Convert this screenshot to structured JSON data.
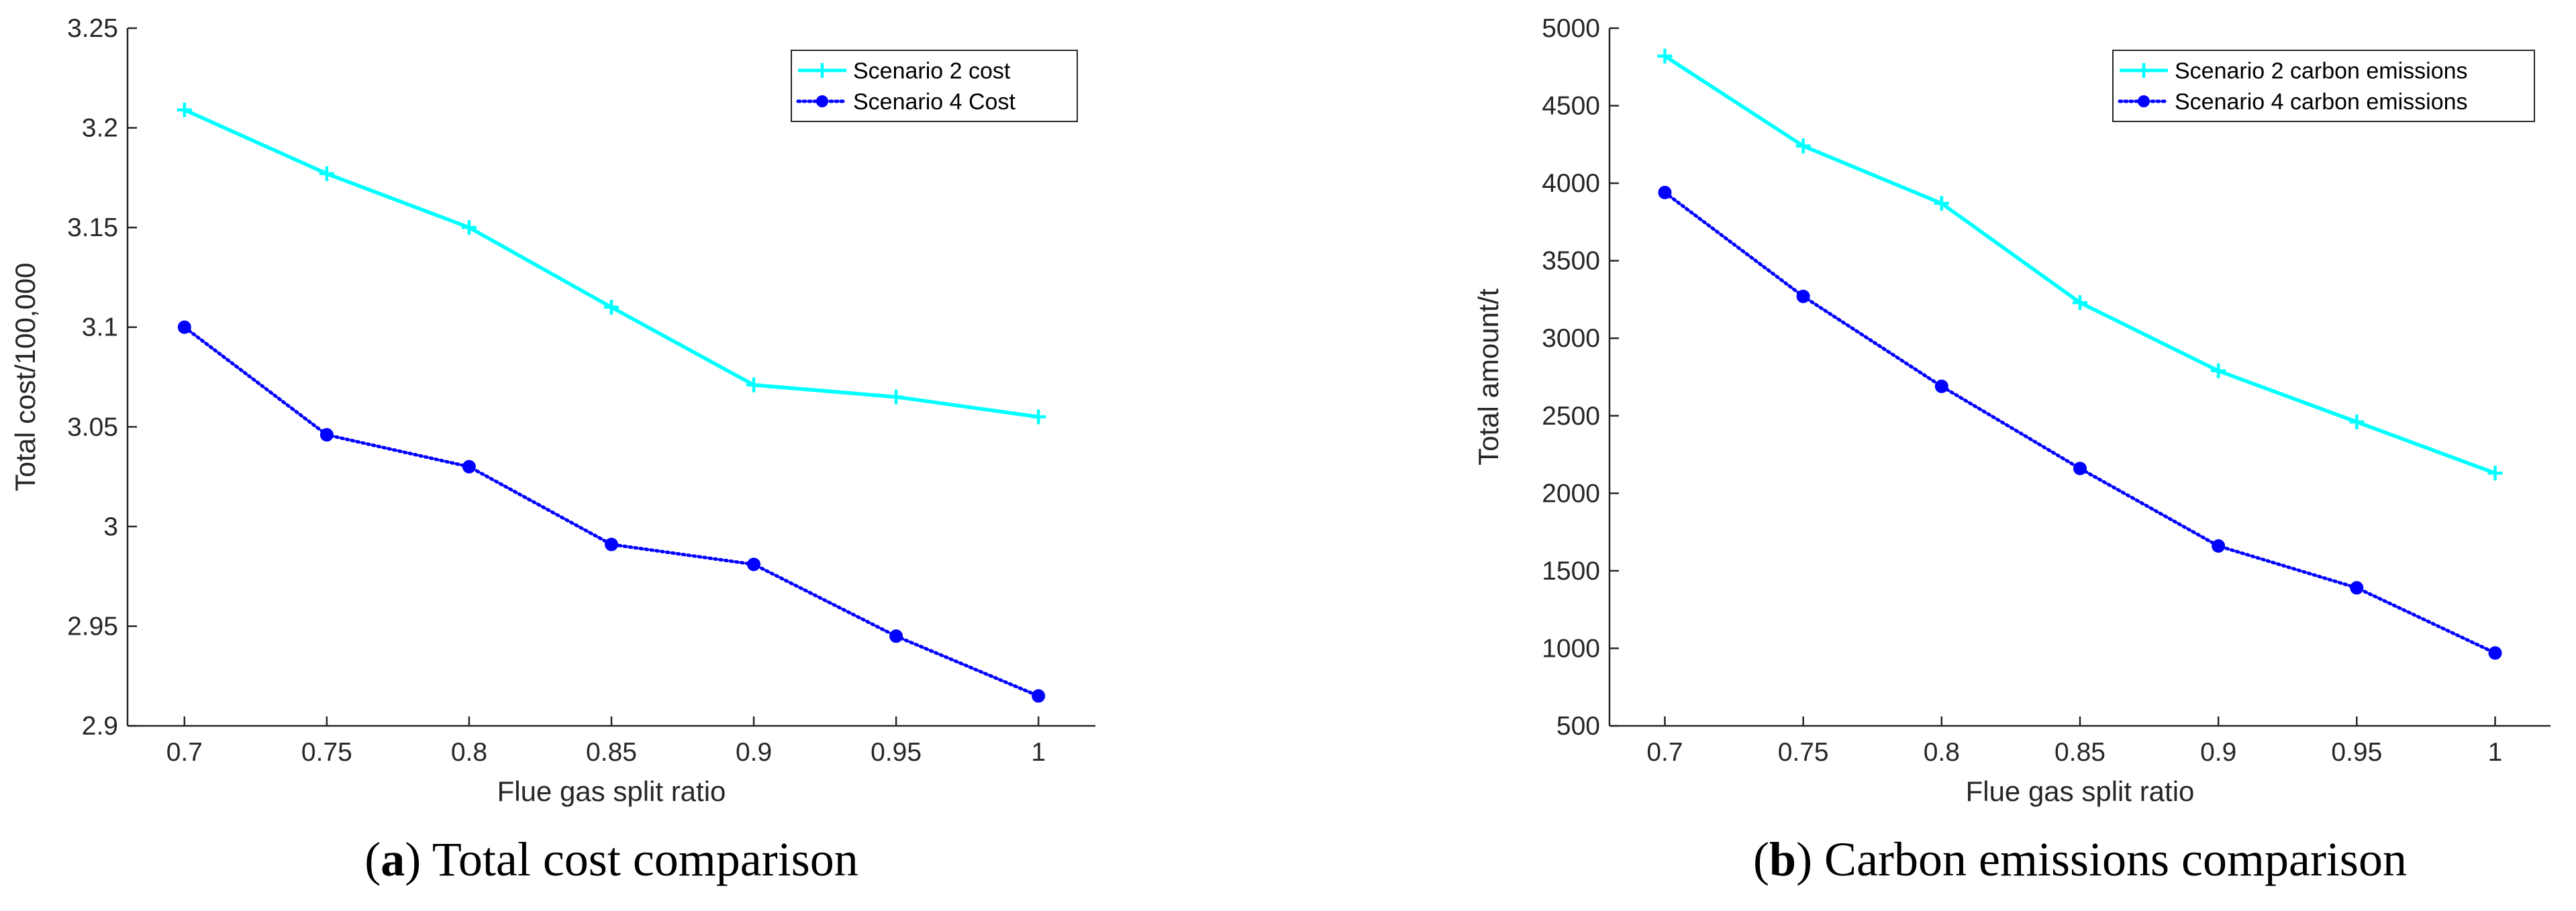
{
  "chart_data": [
    {
      "type": "line",
      "xlabel": "Flue gas split ratio",
      "ylabel": "Total cost/100,000",
      "x": [
        0.7,
        0.75,
        0.8,
        0.85,
        0.9,
        0.95,
        1
      ],
      "xlim": [
        0.68,
        1.02
      ],
      "ylim": [
        2.9,
        3.25
      ],
      "x_tick_labels": [
        "0.7",
        "0.75",
        "0.8",
        "0.85",
        "0.9",
        "0.95",
        "1"
      ],
      "y_ticks": [
        2.9,
        2.95,
        3.0,
        3.05,
        3.1,
        3.15,
        3.2,
        3.25
      ],
      "y_tick_labels": [
        "2.9",
        "2.95",
        "3",
        "3.05",
        "3.1",
        "3.15",
        "3.2",
        "3.25"
      ],
      "legend_position": "top-right",
      "series": [
        {
          "name": "Scenario 2 cost",
          "color": "#00FFFF",
          "style": "solid",
          "marker": "plus",
          "values": [
            3.209,
            3.177,
            3.15,
            3.11,
            3.071,
            3.065,
            3.055
          ]
        },
        {
          "name": "Scenario 4 Cost",
          "color": "#0000FF",
          "style": "dotted",
          "marker": "circle",
          "values": [
            3.1,
            3.046,
            3.03,
            2.991,
            2.981,
            2.945,
            2.915
          ]
        }
      ],
      "caption_letter": "a",
      "caption_text": "Total cost comparison"
    },
    {
      "type": "line",
      "xlabel": "Flue gas split ratio",
      "ylabel": "Total amount/t",
      "x": [
        0.7,
        0.75,
        0.8,
        0.85,
        0.9,
        0.95,
        1
      ],
      "xlim": [
        0.68,
        1.02
      ],
      "ylim": [
        500,
        5000
      ],
      "x_tick_labels": [
        "0.7",
        "0.75",
        "0.8",
        "0.85",
        "0.9",
        "0.95",
        "1"
      ],
      "y_ticks": [
        500,
        1000,
        1500,
        2000,
        2500,
        3000,
        3500,
        4000,
        4500,
        5000
      ],
      "y_tick_labels": [
        "500",
        "1000",
        "1500",
        "2000",
        "2500",
        "3000",
        "3500",
        "4000",
        "4500",
        "5000"
      ],
      "legend_position": "top-right",
      "series": [
        {
          "name": "Scenario 2 carbon emissions",
          "color": "#00FFFF",
          "style": "solid",
          "marker": "plus",
          "values": [
            4820,
            4240,
            3870,
            3230,
            2790,
            2460,
            2130
          ]
        },
        {
          "name": "Scenario 4 carbon emissions",
          "color": "#0000FF",
          "style": "dotted",
          "marker": "circle",
          "values": [
            3940,
            3270,
            2690,
            2160,
            1660,
            1390,
            970
          ]
        }
      ],
      "caption_letter": "b",
      "caption_text": "Carbon emissions comparison"
    }
  ]
}
